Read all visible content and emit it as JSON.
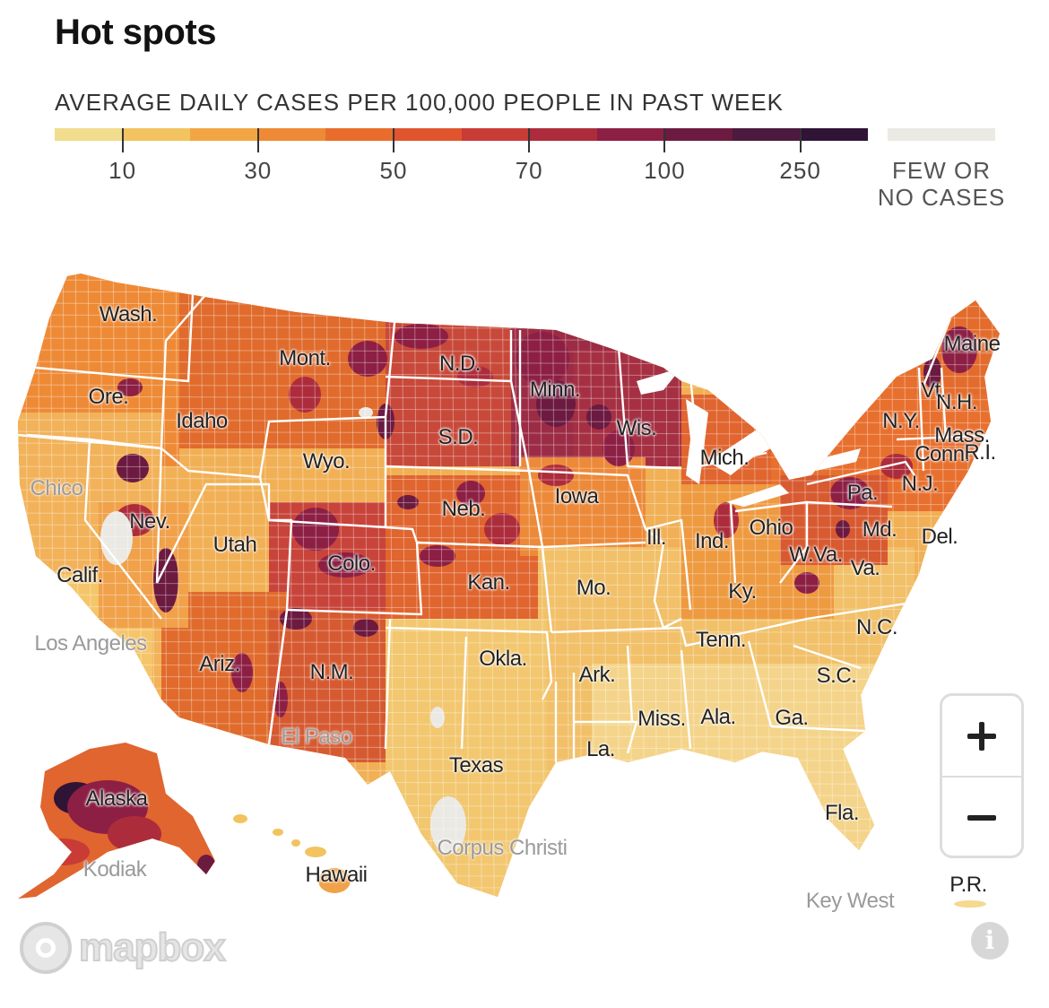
{
  "header": {
    "title": "Hot spots",
    "subtitle": "AVERAGE DAILY CASES PER 100,000 PEOPLE IN PAST WEEK"
  },
  "legend": {
    "bins": [
      "#f0dd8d",
      "#f2c35f",
      "#f1a643",
      "#ee8a36",
      "#e86d2d",
      "#e0552e",
      "#c93b35",
      "#ad2c3b",
      "#8d1f44",
      "#6c1a40",
      "#4b1a3e",
      "#2f1436"
    ],
    "ticks": [
      {
        "label": "10",
        "bin": 1
      },
      {
        "label": "30",
        "bin": 3
      },
      {
        "label": "50",
        "bin": 5
      },
      {
        "label": "70",
        "bin": 7
      },
      {
        "label": "100",
        "bin": 9
      },
      {
        "label": "250",
        "bin": 11
      }
    ],
    "few_or_no_cases": {
      "label_line1": "FEW OR",
      "label_line2": "NO CASES",
      "color": "#ebe9e3"
    }
  },
  "map": {
    "state_labels": [
      "Wash.",
      "Mont.",
      "N.D.",
      "Minn.",
      "Maine",
      "Ore.",
      "Idaho",
      "S.D.",
      "Wis.",
      "Vt.",
      "N.H.",
      "N.Y.",
      "Mass.",
      "Conn.",
      "R.I.",
      "Wyo.",
      "Mich.",
      "N.J.",
      "Pa.",
      "Iowa",
      "Neb.",
      "Nev.",
      "Utah",
      "Colo.",
      "Ill.",
      "Ind.",
      "Ohio",
      "Md.",
      "Del.",
      "W.Va.",
      "Va.",
      "Calif.",
      "Kan.",
      "Mo.",
      "Ky.",
      "N.C.",
      "Tenn.",
      "Ariz.",
      "N.M.",
      "Okla.",
      "Ark.",
      "S.C.",
      "Miss.",
      "Ala.",
      "Ga.",
      "La.",
      "Texas",
      "Fla.",
      "Alaska",
      "Hawaii",
      "P.R."
    ],
    "city_labels": [
      "Chico",
      "Los Angeles",
      "El Paso",
      "Corpus Christi",
      "Kodiak",
      "Key West"
    ]
  },
  "controls": {
    "zoom_in_icon": "plus-icon",
    "zoom_out_icon": "minus-icon",
    "attribution": "mapbox",
    "info_icon": "info-icon"
  }
}
